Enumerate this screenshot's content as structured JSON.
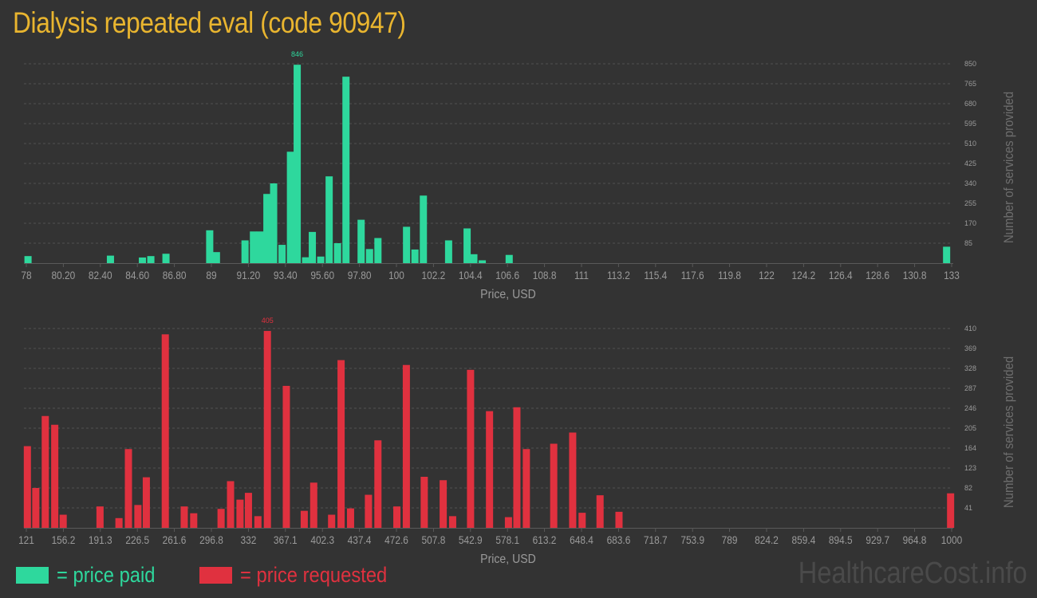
{
  "title": "Dialysis repeated eval (code 90947)",
  "colors": {
    "background": "#333333",
    "title": "#e9b52f",
    "paid": "#2ed89d",
    "requested": "#e0313f",
    "axis_text": "#9a9a9a",
    "grid": "#505050"
  },
  "legend": {
    "paid_label": "= price paid",
    "requested_label": "= price requested"
  },
  "watermark": "HealthcareCost.info",
  "chart_data": [
    {
      "type": "bar",
      "name": "price paid",
      "xlabel": "Price, USD",
      "ylabel": "Number of services provided",
      "x_range": [
        78,
        133
      ],
      "ylim": [
        0,
        850
      ],
      "y_ticks": [
        85,
        170,
        255,
        340,
        425,
        510,
        595,
        680,
        765,
        850
      ],
      "x_ticks": [
        {
          "v": 78,
          "label": "78"
        },
        {
          "v": 80.2,
          "label": "80.20"
        },
        {
          "v": 82.4,
          "label": "82.40"
        },
        {
          "v": 84.6,
          "label": "84.60"
        },
        {
          "v": 86.8,
          "label": "86.80"
        },
        {
          "v": 89,
          "label": "89"
        },
        {
          "v": 91.2,
          "label": "91.20"
        },
        {
          "v": 93.4,
          "label": "93.40"
        },
        {
          "v": 95.6,
          "label": "95.60"
        },
        {
          "v": 97.8,
          "label": "97.80"
        },
        {
          "v": 100,
          "label": "100"
        },
        {
          "v": 102.2,
          "label": "102.2"
        },
        {
          "v": 104.4,
          "label": "104.4"
        },
        {
          "v": 106.6,
          "label": "106.6"
        },
        {
          "v": 108.8,
          "label": "108.8"
        },
        {
          "v": 111,
          "label": "111"
        },
        {
          "v": 113.2,
          "label": "113.2"
        },
        {
          "v": 115.4,
          "label": "115.4"
        },
        {
          "v": 117.6,
          "label": "117.6"
        },
        {
          "v": 119.8,
          "label": "119.8"
        },
        {
          "v": 122,
          "label": "122"
        },
        {
          "v": 124.2,
          "label": "124.2"
        },
        {
          "v": 126.4,
          "label": "126.4"
        },
        {
          "v": 128.6,
          "label": "128.6"
        },
        {
          "v": 130.8,
          "label": "130.8"
        },
        {
          "v": 133,
          "label": "133"
        }
      ],
      "max_label": "846",
      "bars": [
        {
          "x": 78.1,
          "y": 30
        },
        {
          "x": 83.0,
          "y": 32
        },
        {
          "x": 84.9,
          "y": 24
        },
        {
          "x": 85.4,
          "y": 30
        },
        {
          "x": 86.3,
          "y": 40
        },
        {
          "x": 88.9,
          "y": 140
        },
        {
          "x": 89.3,
          "y": 47
        },
        {
          "x": 91.0,
          "y": 97
        },
        {
          "x": 91.5,
          "y": 135
        },
        {
          "x": 91.9,
          "y": 135
        },
        {
          "x": 92.3,
          "y": 295
        },
        {
          "x": 92.7,
          "y": 340
        },
        {
          "x": 93.2,
          "y": 78
        },
        {
          "x": 93.7,
          "y": 475
        },
        {
          "x": 94.1,
          "y": 846
        },
        {
          "x": 94.6,
          "y": 25
        },
        {
          "x": 95.0,
          "y": 133
        },
        {
          "x": 95.5,
          "y": 28
        },
        {
          "x": 96.0,
          "y": 370
        },
        {
          "x": 96.5,
          "y": 85
        },
        {
          "x": 97.0,
          "y": 795
        },
        {
          "x": 97.9,
          "y": 185
        },
        {
          "x": 98.4,
          "y": 60
        },
        {
          "x": 98.9,
          "y": 107
        },
        {
          "x": 100.6,
          "y": 155
        },
        {
          "x": 101.1,
          "y": 58
        },
        {
          "x": 101.6,
          "y": 288
        },
        {
          "x": 103.1,
          "y": 97
        },
        {
          "x": 104.2,
          "y": 148
        },
        {
          "x": 104.6,
          "y": 38
        },
        {
          "x": 105.1,
          "y": 12
        },
        {
          "x": 106.7,
          "y": 35
        },
        {
          "x": 132.7,
          "y": 70
        }
      ]
    },
    {
      "type": "bar",
      "name": "price requested",
      "xlabel": "Price, USD",
      "ylabel": "Number of services provided",
      "x_range": [
        121,
        1000
      ],
      "ylim": [
        0,
        410
      ],
      "y_ticks": [
        41,
        82,
        123,
        164,
        205,
        246,
        287,
        328,
        369,
        410
      ],
      "x_ticks": [
        {
          "v": 121,
          "label": "121"
        },
        {
          "v": 156.2,
          "label": "156.2"
        },
        {
          "v": 191.3,
          "label": "191.3"
        },
        {
          "v": 226.5,
          "label": "226.5"
        },
        {
          "v": 261.6,
          "label": "261.6"
        },
        {
          "v": 296.8,
          "label": "296.8"
        },
        {
          "v": 332,
          "label": "332"
        },
        {
          "v": 367.1,
          "label": "367.1"
        },
        {
          "v": 402.3,
          "label": "402.3"
        },
        {
          "v": 437.4,
          "label": "437.4"
        },
        {
          "v": 472.6,
          "label": "472.6"
        },
        {
          "v": 507.8,
          "label": "507.8"
        },
        {
          "v": 542.9,
          "label": "542.9"
        },
        {
          "v": 578.1,
          "label": "578.1"
        },
        {
          "v": 613.2,
          "label": "613.2"
        },
        {
          "v": 648.4,
          "label": "648.4"
        },
        {
          "v": 683.6,
          "label": "683.6"
        },
        {
          "v": 718.7,
          "label": "718.7"
        },
        {
          "v": 753.9,
          "label": "753.9"
        },
        {
          "v": 789,
          "label": "789"
        },
        {
          "v": 824.2,
          "label": "824.2"
        },
        {
          "v": 859.4,
          "label": "859.4"
        },
        {
          "v": 894.5,
          "label": "894.5"
        },
        {
          "v": 929.7,
          "label": "929.7"
        },
        {
          "v": 964.8,
          "label": "964.8"
        },
        {
          "v": 1000,
          "label": "1000"
        }
      ],
      "max_label": "405",
      "bars": [
        {
          "x": 122,
          "y": 168
        },
        {
          "x": 130,
          "y": 82
        },
        {
          "x": 139,
          "y": 230
        },
        {
          "x": 148,
          "y": 212
        },
        {
          "x": 156,
          "y": 27
        },
        {
          "x": 191,
          "y": 44
        },
        {
          "x": 209,
          "y": 20
        },
        {
          "x": 218,
          "y": 162
        },
        {
          "x": 227,
          "y": 47
        },
        {
          "x": 235,
          "y": 104
        },
        {
          "x": 253,
          "y": 398
        },
        {
          "x": 271,
          "y": 44
        },
        {
          "x": 280,
          "y": 30
        },
        {
          "x": 306,
          "y": 39
        },
        {
          "x": 315,
          "y": 96
        },
        {
          "x": 324,
          "y": 58
        },
        {
          "x": 332,
          "y": 72
        },
        {
          "x": 341,
          "y": 24
        },
        {
          "x": 350,
          "y": 405
        },
        {
          "x": 368,
          "y": 292
        },
        {
          "x": 385,
          "y": 35
        },
        {
          "x": 394,
          "y": 93
        },
        {
          "x": 411,
          "y": 27
        },
        {
          "x": 420,
          "y": 345
        },
        {
          "x": 429,
          "y": 40
        },
        {
          "x": 446,
          "y": 68
        },
        {
          "x": 455,
          "y": 180
        },
        {
          "x": 473,
          "y": 44
        },
        {
          "x": 482,
          "y": 335
        },
        {
          "x": 499,
          "y": 105
        },
        {
          "x": 517,
          "y": 98
        },
        {
          "x": 526,
          "y": 24
        },
        {
          "x": 543,
          "y": 325
        },
        {
          "x": 561,
          "y": 240
        },
        {
          "x": 579,
          "y": 22
        },
        {
          "x": 587,
          "y": 248
        },
        {
          "x": 596,
          "y": 162
        },
        {
          "x": 622,
          "y": 173
        },
        {
          "x": 640,
          "y": 196
        },
        {
          "x": 649,
          "y": 31
        },
        {
          "x": 666,
          "y": 67
        },
        {
          "x": 684,
          "y": 33
        },
        {
          "x": 999,
          "y": 71
        }
      ]
    }
  ]
}
